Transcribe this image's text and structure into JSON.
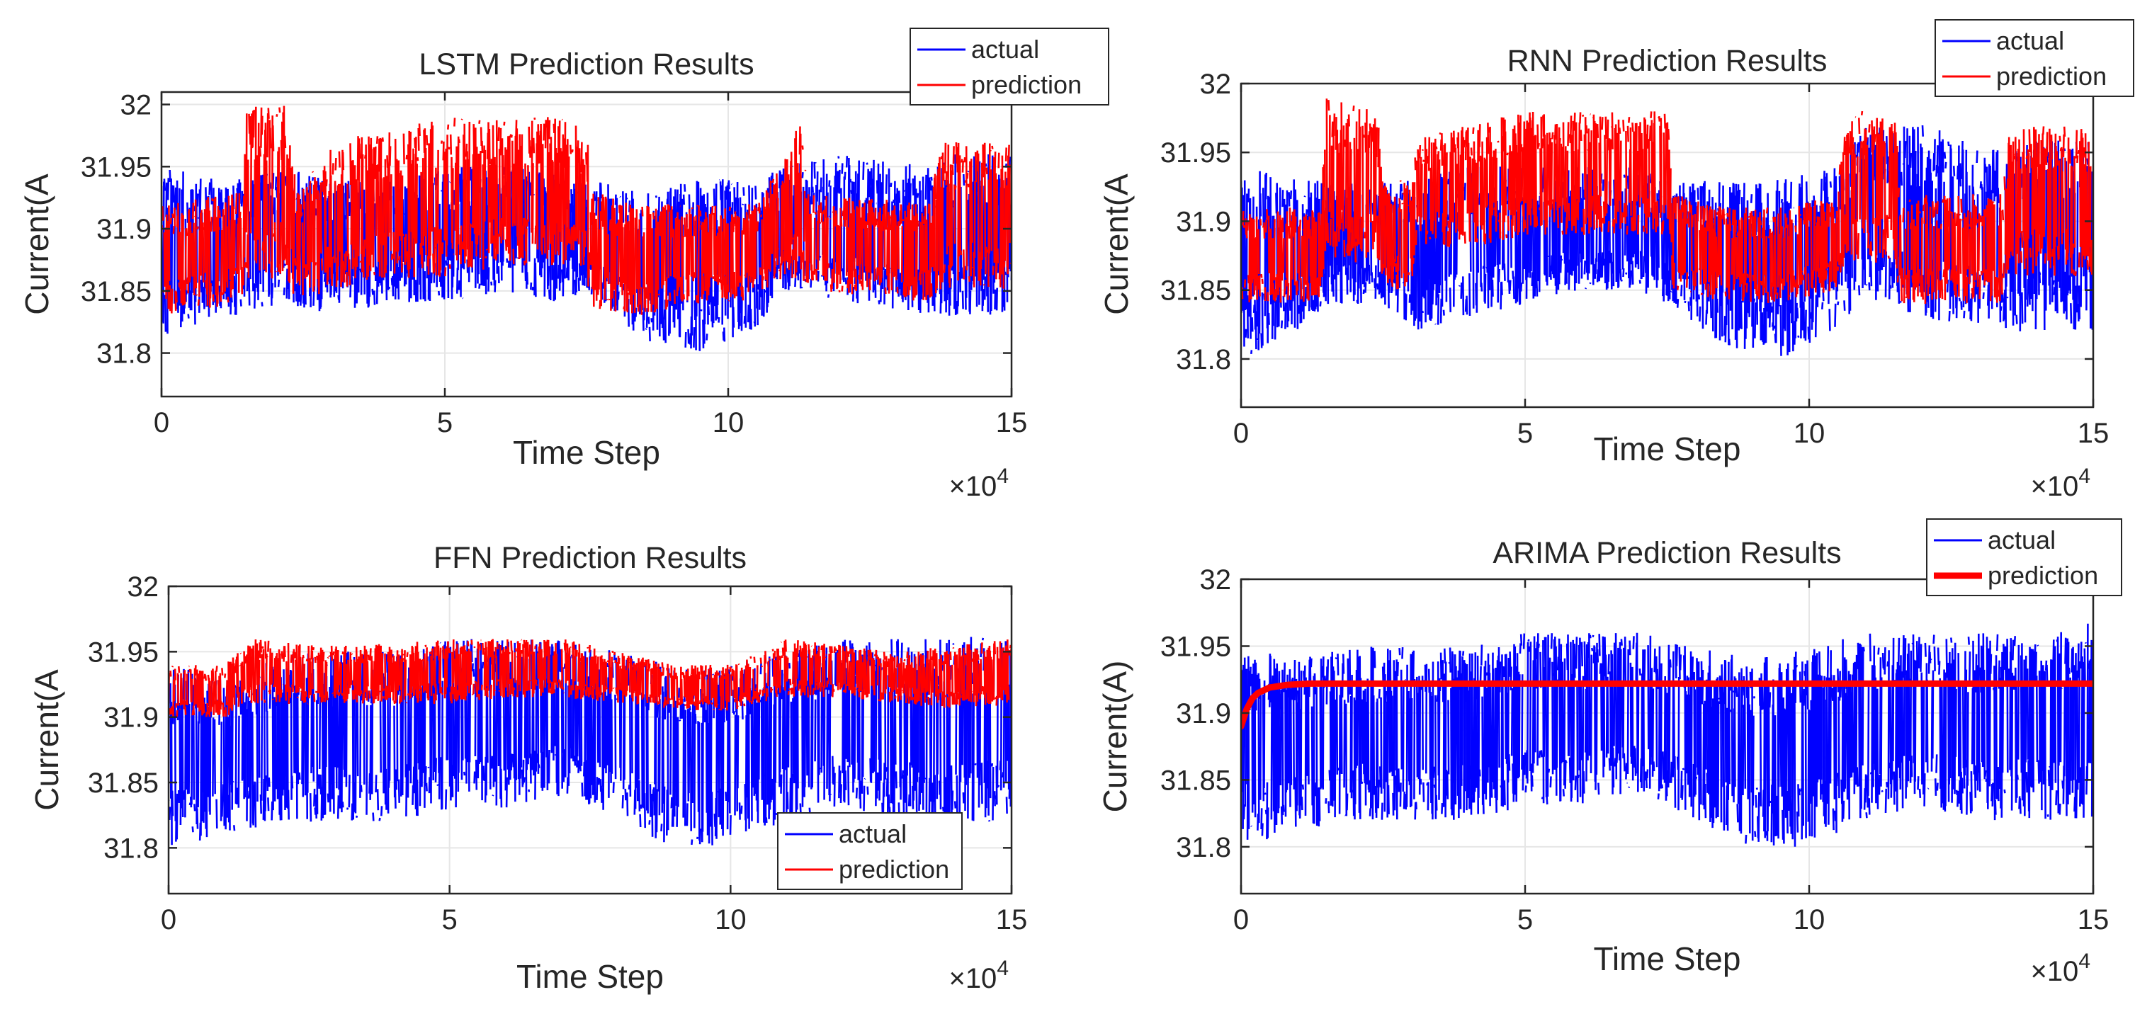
{
  "colors": {
    "actual": "#0000ff",
    "prediction": "#ff0000",
    "grid": "#e6e6e6",
    "axis": "#262626"
  },
  "chart_data": [
    {
      "type": "line",
      "title": "LSTM Prediction Results",
      "xlabel": "Time Step",
      "ylabel": "Current(A",
      "xlim": [
        0,
        150000
      ],
      "ylim": [
        31.765,
        32.01
      ],
      "xticks": [
        0,
        5,
        10,
        15
      ],
      "xtick_labels": [
        "0",
        "5",
        "10",
        "15"
      ],
      "yticks": [
        31.8,
        31.85,
        31.9,
        31.95,
        32.0
      ],
      "ytick_labels": [
        "31.8",
        "31.85",
        "31.9",
        "31.95",
        "32"
      ],
      "x_multiplier": "×10",
      "x_multiplier_exp": "4",
      "grid": true,
      "legend": "top-right outside",
      "series": [
        {
          "name": "actual",
          "color": "#0000ff",
          "x": [
            0,
            10000,
            14000,
            22000,
            30000,
            40000,
            50000,
            60000,
            70000,
            75000,
            85000,
            95000,
            105000,
            110000,
            120000,
            135000,
            140000,
            150000
          ],
          "y_low": [
            31.81,
            31.83,
            31.83,
            31.84,
            31.83,
            31.84,
            31.84,
            31.85,
            31.84,
            31.85,
            31.81,
            31.8,
            31.82,
            31.85,
            31.84,
            31.83,
            31.83,
            31.83
          ],
          "y_high": [
            31.95,
            31.94,
            31.94,
            31.95,
            31.94,
            31.94,
            31.95,
            31.95,
            31.95,
            31.94,
            31.93,
            31.94,
            31.94,
            31.95,
            31.96,
            31.95,
            31.96,
            31.96
          ]
        },
        {
          "name": "prediction",
          "color": "#ff0000",
          "x": [
            0,
            14000,
            15000,
            22000,
            24000,
            30000,
            40000,
            50000,
            60000,
            70000,
            75000,
            76000,
            85000,
            95000,
            105000,
            110000,
            113000,
            114000,
            135000,
            138000,
            140000,
            150000
          ],
          "y_low": [
            31.83,
            31.84,
            31.86,
            31.86,
            31.84,
            31.85,
            31.86,
            31.86,
            31.87,
            31.87,
            31.86,
            31.83,
            31.83,
            31.84,
            31.84,
            31.86,
            31.86,
            31.85,
            31.84,
            31.85,
            31.85,
            31.85
          ],
          "y_high": [
            31.92,
            31.93,
            32.0,
            32.0,
            31.93,
            31.97,
            31.98,
            31.99,
            31.99,
            31.99,
            31.98,
            31.93,
            31.92,
            31.92,
            31.92,
            31.96,
            31.99,
            31.93,
            31.92,
            31.97,
            31.97,
            31.97
          ]
        }
      ]
    },
    {
      "type": "line",
      "title": "RNN Prediction Results",
      "xlabel": "Time Step",
      "ylabel": "Current(A",
      "xlim": [
        0,
        150000
      ],
      "ylim": [
        31.765,
        32.0
      ],
      "xticks": [
        0,
        5,
        10,
        15
      ],
      "xtick_labels": [
        "0",
        "5",
        "10",
        "15"
      ],
      "yticks": [
        31.8,
        31.85,
        31.9,
        31.95,
        32.0
      ],
      "ytick_labels": [
        "31.8",
        "31.85",
        "31.9",
        "31.95",
        "32"
      ],
      "x_multiplier": "×10",
      "x_multiplier_exp": "4",
      "grid": true,
      "legend": "top-right outside",
      "series": [
        {
          "name": "actual",
          "color": "#0000ff",
          "x": [
            0,
            10000,
            15000,
            25000,
            30000,
            40000,
            50000,
            60000,
            70000,
            75000,
            85000,
            95000,
            105000,
            110000,
            120000,
            135000,
            140000,
            150000
          ],
          "y_low": [
            31.8,
            31.82,
            31.84,
            31.84,
            31.82,
            31.83,
            31.84,
            31.85,
            31.85,
            31.84,
            31.81,
            31.8,
            31.82,
            31.84,
            31.83,
            31.82,
            31.82,
            31.82
          ],
          "y_high": [
            31.94,
            31.93,
            31.93,
            31.93,
            31.93,
            31.94,
            31.94,
            31.94,
            31.94,
            31.93,
            31.93,
            31.93,
            31.94,
            31.97,
            31.97,
            31.95,
            31.96,
            31.96
          ]
        },
        {
          "name": "prediction",
          "color": "#ff0000",
          "x": [
            0,
            14000,
            15000,
            24000,
            25000,
            30000,
            31000,
            40000,
            50000,
            60000,
            70000,
            75000,
            76000,
            85000,
            95000,
            105000,
            106000,
            115000,
            116000,
            134000,
            135000,
            150000
          ],
          "y_low": [
            31.84,
            31.84,
            31.87,
            31.87,
            31.85,
            31.85,
            31.88,
            31.88,
            31.89,
            31.89,
            31.89,
            31.88,
            31.85,
            31.84,
            31.84,
            31.85,
            31.87,
            31.87,
            31.84,
            31.84,
            31.86,
            31.86
          ],
          "y_high": [
            31.91,
            31.91,
            31.99,
            31.98,
            31.93,
            31.93,
            31.96,
            31.97,
            31.98,
            31.98,
            31.98,
            31.98,
            31.92,
            31.91,
            31.91,
            31.92,
            31.98,
            31.98,
            31.92,
            31.92,
            31.97,
            31.97
          ]
        }
      ]
    },
    {
      "type": "line",
      "title": "FFN Prediction Results",
      "xlabel": "Time Step",
      "ylabel": "Current(A",
      "xlim": [
        0,
        150000
      ],
      "ylim": [
        31.765,
        32.0
      ],
      "xticks": [
        0,
        5,
        10,
        15
      ],
      "xtick_labels": [
        "0",
        "5",
        "10",
        "15"
      ],
      "yticks": [
        31.8,
        31.85,
        31.9,
        31.95,
        32.0
      ],
      "ytick_labels": [
        "31.8",
        "31.85",
        "31.9",
        "31.95",
        "32"
      ],
      "x_multiplier": "×10",
      "x_multiplier_exp": "4",
      "grid": true,
      "legend": "bottom-right",
      "series": [
        {
          "name": "actual",
          "color": "#0000ff",
          "x": [
            0,
            10000,
            20000,
            30000,
            40000,
            50000,
            60000,
            70000,
            80000,
            90000,
            100000,
            110000,
            120000,
            130000,
            140000,
            150000
          ],
          "y_low": [
            31.8,
            31.81,
            31.82,
            31.82,
            31.82,
            31.83,
            31.83,
            31.84,
            31.82,
            31.8,
            31.8,
            31.82,
            31.83,
            31.82,
            31.82,
            31.82
          ],
          "y_high": [
            31.94,
            31.93,
            31.95,
            31.95,
            31.95,
            31.96,
            31.96,
            31.96,
            31.95,
            31.94,
            31.94,
            31.95,
            31.96,
            31.96,
            31.96,
            31.97
          ]
        },
        {
          "name": "prediction",
          "color": "#ff0000",
          "x": [
            0,
            10000,
            15000,
            25000,
            35000,
            50000,
            60000,
            70000,
            80000,
            90000,
            100000,
            105000,
            110000,
            120000,
            130000,
            140000,
            150000
          ],
          "y_low": [
            31.9,
            31.9,
            31.91,
            31.91,
            31.91,
            31.91,
            31.915,
            31.915,
            31.91,
            31.905,
            31.905,
            31.91,
            31.915,
            31.915,
            31.91,
            31.905,
            31.91
          ],
          "y_high": [
            31.94,
            31.94,
            31.96,
            31.955,
            31.955,
            31.96,
            31.96,
            31.96,
            31.95,
            31.94,
            31.94,
            31.95,
            31.96,
            31.955,
            31.95,
            31.955,
            31.96
          ]
        }
      ]
    },
    {
      "type": "line",
      "title": "ARIMA Prediction Results",
      "xlabel": "Time Step",
      "ylabel": "Current(A)",
      "xlim": [
        0,
        150000
      ],
      "ylim": [
        31.765,
        32.0
      ],
      "xticks": [
        0,
        5,
        10,
        15
      ],
      "xtick_labels": [
        "0",
        "5",
        "10",
        "15"
      ],
      "yticks": [
        31.8,
        31.85,
        31.9,
        31.95,
        32.0
      ],
      "ytick_labels": [
        "31.8",
        "31.85",
        "31.9",
        "31.95",
        "32"
      ],
      "x_multiplier": "×10",
      "x_multiplier_exp": "4",
      "grid": true,
      "legend": "top-right outside",
      "series": [
        {
          "name": "actual",
          "color": "#0000ff",
          "x": [
            0,
            10000,
            20000,
            30000,
            40000,
            50000,
            60000,
            70000,
            80000,
            90000,
            100000,
            110000,
            120000,
            130000,
            140000,
            150000
          ],
          "y_low": [
            31.8,
            31.81,
            31.82,
            31.82,
            31.82,
            31.83,
            31.83,
            31.84,
            31.82,
            31.8,
            31.8,
            31.82,
            31.83,
            31.82,
            31.82,
            31.82
          ],
          "y_high": [
            31.95,
            31.94,
            31.95,
            31.95,
            31.95,
            31.96,
            31.96,
            31.96,
            31.95,
            31.94,
            31.95,
            31.96,
            31.96,
            31.96,
            31.96,
            31.97
          ]
        },
        {
          "name": "prediction",
          "color": "#ff0000",
          "x": [
            0,
            1000,
            2000,
            3000,
            5000,
            8000,
            12000,
            150000
          ],
          "y": [
            31.89,
            31.903,
            31.911,
            31.915,
            31.919,
            31.921,
            31.922,
            31.922
          ]
        }
      ]
    }
  ]
}
